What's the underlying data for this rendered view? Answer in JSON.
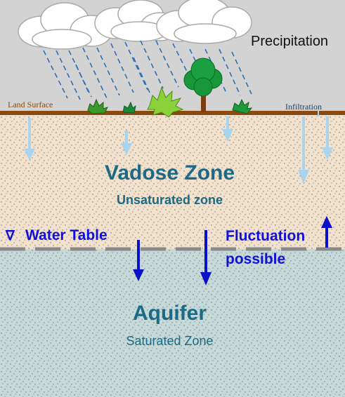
{
  "labels": {
    "precipitation": "Precipitation",
    "land_surface": "Land Surface",
    "infiltration": "Infiltration",
    "vadose_title": "Vadose Zone",
    "vadose_subtitle": "Unsaturated zone",
    "water_table_symbol": "∇",
    "water_table": "Water Table",
    "fluctuation_line1": "Fluctuation",
    "fluctuation_line2": "possible",
    "aquifer_title": "Aquifer",
    "aquifer_subtitle": "Saturated Zone"
  },
  "colors": {
    "sky": "#d3d3d3",
    "rain": "#2f6fb5",
    "land_surface": "#8a4a12",
    "vadose_zone": "#f1e1cd",
    "aquifer_zone": "#c5d9d8",
    "infiltration_arrow": "#a8d4ee",
    "fluctuation_arrow": "#0b10c9",
    "label_teal": "#1c6a86",
    "label_blue": "#1010d8"
  },
  "icons": [
    "cloud-icon",
    "tree-icon",
    "shrub-icon",
    "infiltration-arrow-icon",
    "fluctuation-arrow-icon"
  ]
}
